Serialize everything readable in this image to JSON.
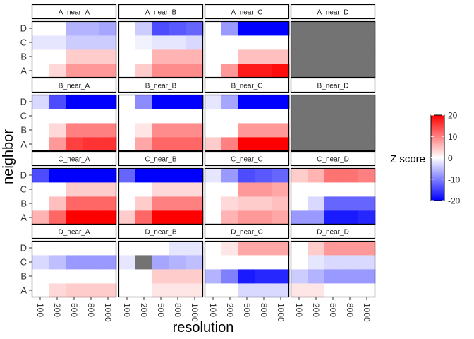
{
  "chart_data": {
    "type": "heatmap",
    "facet_rows": [
      "A",
      "B",
      "C",
      "D"
    ],
    "facet_cols": [
      "A",
      "B",
      "C",
      "D"
    ],
    "facet_label_format": "{row}_near_{col}",
    "x_categories": [
      "100",
      "200",
      "500",
      "800",
      "1000"
    ],
    "y_categories": [
      "A",
      "B",
      "C",
      "D"
    ],
    "xlabel": "resolution",
    "ylabel": "neighbor",
    "legend": {
      "title": "Z score",
      "placement": "right",
      "ticks": [
        "20",
        "10",
        "0",
        "-10",
        "-20"
      ],
      "limits": [
        -20,
        20
      ]
    },
    "missing_color": "#737373",
    "colors": {
      "low": "#0000ff",
      "mid": "#ffffff",
      "high": "#ff0000"
    },
    "panels": [
      {
        "label": "A_near_A",
        "values": [
          [
            0,
            3,
            8,
            8,
            8
          ],
          [
            0,
            0,
            4,
            4,
            4
          ],
          [
            -2,
            -2,
            -4,
            -4,
            -4
          ],
          [
            0,
            0,
            -6,
            -6,
            -7
          ]
        ]
      },
      {
        "label": "A_near_B",
        "values": [
          [
            0,
            4,
            9,
            9,
            9
          ],
          [
            0,
            0,
            6,
            6,
            6
          ],
          [
            0,
            -1,
            -2,
            -2,
            -3
          ],
          [
            0,
            -4,
            -14,
            -13,
            -12
          ]
        ]
      },
      {
        "label": "A_near_C",
        "values": [
          [
            0,
            8,
            18,
            18,
            19
          ],
          [
            0,
            0,
            5,
            5,
            5
          ],
          [
            0,
            0,
            0,
            0,
            0
          ],
          [
            0,
            -8,
            -20,
            -20,
            -20
          ]
        ]
      },
      {
        "label": "A_near_D",
        "values": [
          [
            null,
            null,
            null,
            null,
            null
          ],
          [
            null,
            null,
            null,
            null,
            null
          ],
          [
            null,
            null,
            null,
            null,
            null
          ],
          [
            null,
            null,
            null,
            null,
            null
          ]
        ]
      },
      {
        "label": "B_near_A",
        "values": [
          [
            0,
            8,
            15,
            16,
            16
          ],
          [
            0,
            3,
            10,
            10,
            10
          ],
          [
            0,
            0,
            0,
            0,
            0
          ],
          [
            -3,
            -14,
            -20,
            -20,
            -20
          ]
        ]
      },
      {
        "label": "B_near_B",
        "values": [
          [
            0,
            7,
            12,
            12,
            12
          ],
          [
            0,
            2,
            9,
            9,
            9
          ],
          [
            0,
            0,
            0,
            0,
            0
          ],
          [
            0,
            -9,
            -20,
            -20,
            -20
          ]
        ]
      },
      {
        "label": "B_near_C",
        "values": [
          [
            4,
            10,
            20,
            20,
            20
          ],
          [
            0,
            0,
            8,
            8,
            8
          ],
          [
            0,
            0,
            0,
            0,
            0
          ],
          [
            -2,
            -7,
            -20,
            -20,
            -20
          ]
        ]
      },
      {
        "label": "B_near_D",
        "values": [
          [
            null,
            null,
            null,
            null,
            null
          ],
          [
            null,
            null,
            null,
            null,
            null
          ],
          [
            null,
            null,
            null,
            null,
            null
          ],
          [
            null,
            null,
            null,
            null,
            null
          ]
        ]
      },
      {
        "label": "C_near_A",
        "values": [
          [
            6,
            12,
            20,
            20,
            20
          ],
          [
            0,
            5,
            12,
            12,
            12
          ],
          [
            0,
            0,
            4,
            4,
            4
          ],
          [
            -14,
            -20,
            -20,
            -20,
            -20
          ]
        ]
      },
      {
        "label": "C_near_B",
        "values": [
          [
            4,
            12,
            20,
            20,
            20
          ],
          [
            0,
            4,
            10,
            10,
            10
          ],
          [
            0,
            0,
            3,
            3,
            3
          ],
          [
            -12,
            -20,
            -20,
            -20,
            -20
          ]
        ]
      },
      {
        "label": "C_near_C",
        "values": [
          [
            0,
            6,
            8,
            8,
            7
          ],
          [
            0,
            3,
            4,
            4,
            5
          ],
          [
            0,
            0,
            8,
            8,
            7
          ],
          [
            -2,
            -8,
            -14,
            -13,
            -12
          ]
        ]
      },
      {
        "label": "C_near_D",
        "values": [
          [
            -8,
            -8,
            -18,
            -18,
            -17
          ],
          [
            0,
            -3,
            -12,
            -12,
            -12
          ],
          [
            0,
            0,
            0,
            0,
            0
          ],
          [
            4,
            6,
            11,
            11,
            10
          ]
        ]
      },
      {
        "label": "D_near_A",
        "values": [
          [
            0,
            3,
            4,
            4,
            4
          ],
          [
            0,
            0,
            0,
            0,
            0
          ],
          [
            -3,
            -5,
            -8,
            -8,
            -8
          ],
          [
            0,
            0,
            0,
            0,
            0
          ]
        ]
      },
      {
        "label": "D_near_B",
        "values": [
          [
            0,
            0,
            2,
            2,
            2
          ],
          [
            0,
            0,
            4,
            4,
            4
          ],
          [
            -2,
            null,
            -7,
            -6,
            -5
          ],
          [
            0,
            0,
            0,
            -2,
            -2
          ]
        ]
      },
      {
        "label": "D_near_C",
        "values": [
          [
            0,
            0,
            -3,
            -3,
            -3
          ],
          [
            -6,
            -10,
            -18,
            -17,
            -17
          ],
          [
            0,
            0,
            0,
            0,
            0
          ],
          [
            0,
            2,
            7,
            7,
            7
          ]
        ]
      },
      {
        "label": "D_near_D",
        "values": [
          [
            2,
            2,
            0,
            0,
            0
          ],
          [
            -4,
            -6,
            -8,
            -8,
            -8
          ],
          [
            0,
            -2,
            -3,
            -3,
            -3
          ],
          [
            0,
            4,
            8,
            8,
            8
          ]
        ]
      }
    ]
  }
}
